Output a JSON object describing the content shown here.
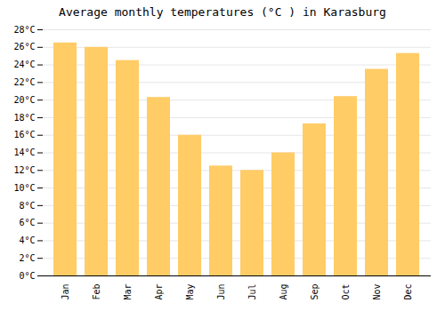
{
  "chart_data": {
    "type": "bar",
    "title": "Average monthly temperatures (°C ) in Karasburg",
    "categories": [
      "Jan",
      "Feb",
      "Mar",
      "Apr",
      "May",
      "Jun",
      "Jul",
      "Aug",
      "Sep",
      "Oct",
      "Nov",
      "Dec"
    ],
    "values": [
      26.5,
      26.0,
      24.5,
      20.3,
      16.0,
      12.5,
      12.0,
      14.0,
      17.3,
      20.4,
      23.5,
      25.3
    ],
    "color": "#FFCC66",
    "ylim": [
      0,
      28
    ],
    "yticks": [
      {
        "value": 0,
        "label": "0°C"
      },
      {
        "value": 2,
        "label": "2°C"
      },
      {
        "value": 4,
        "label": "4°C"
      },
      {
        "value": 6,
        "label": "6°C"
      },
      {
        "value": 8,
        "label": "8°C"
      },
      {
        "value": 10,
        "label": "10°C"
      },
      {
        "value": 12,
        "label": "12°C"
      },
      {
        "value": 14,
        "label": "14°C"
      },
      {
        "value": 16,
        "label": "16°C"
      },
      {
        "value": 18,
        "label": "18°C"
      },
      {
        "value": 20,
        "label": "20°C"
      },
      {
        "value": 22,
        "label": "22°C"
      },
      {
        "value": 24,
        "label": "24°C"
      },
      {
        "value": 26,
        "label": "26°C"
      },
      {
        "value": 28,
        "label": "28°C"
      }
    ],
    "grid": true
  }
}
